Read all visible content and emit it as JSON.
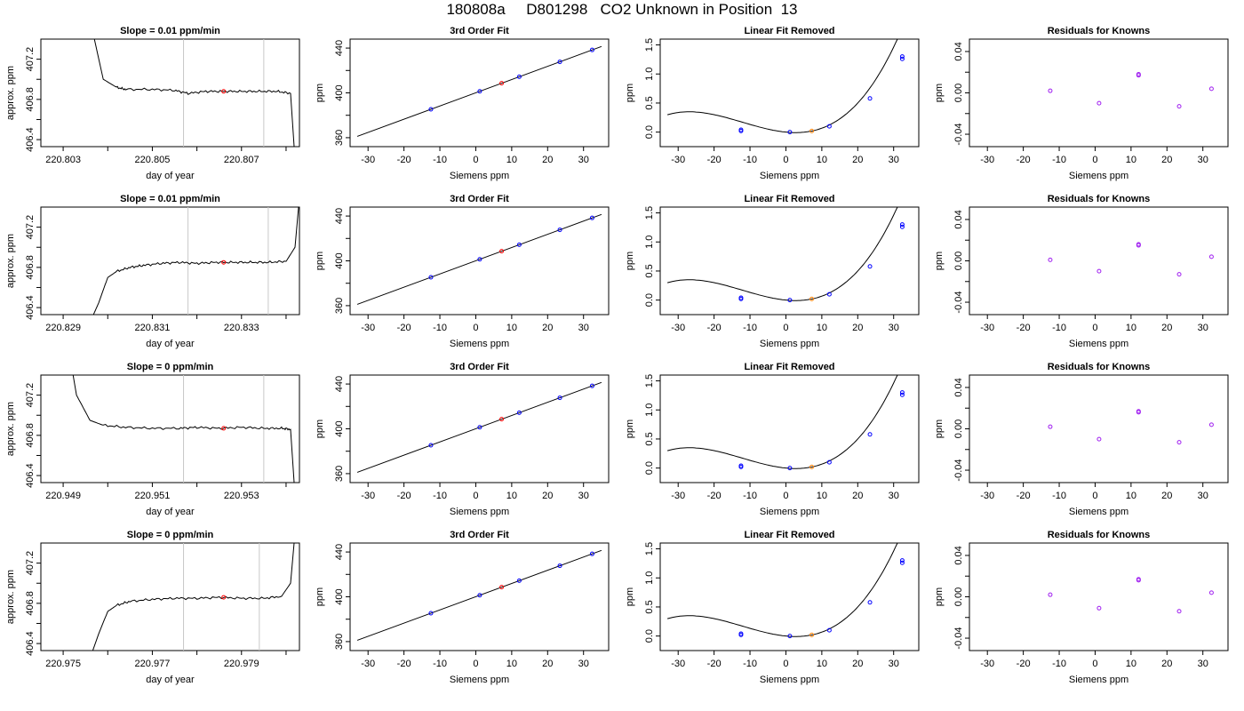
{
  "title": "180808a     D801298   CO2 Unknown in Position  13",
  "colors": {
    "axis": "#000000",
    "curve": "#000000",
    "known_point": "#0000ff",
    "unknown_point": "#ff0000",
    "unknown_point_residual": "#ff8000",
    "residual_point": "#a020f0",
    "vline": "#c8c8c8"
  },
  "chart_data": [
    {
      "type": "line",
      "row": 1,
      "title": "Slope =  0.01  ppm/min",
      "xlabel": "day of year",
      "ylabel": "approx. ppm",
      "xlim": [
        220.8025,
        220.8083
      ],
      "ylim": [
        406.33,
        407.4
      ],
      "x_ticks": [
        220.803,
        220.804,
        220.805,
        220.806,
        220.807,
        220.808
      ],
      "x_tick_labels": [
        "220.803",
        "",
        "220.805",
        "",
        "220.807",
        ""
      ],
      "y_ticks": [
        406.4,
        406.6,
        406.8,
        407.0,
        407.2
      ],
      "y_tick_labels": [
        "406.4",
        "",
        "406.8",
        "",
        "407.2"
      ],
      "vlines": [
        220.8057,
        220.8075
      ],
      "series_points": [
        [
          220.8026,
          409.5
        ],
        [
          220.8037,
          407.4
        ],
        [
          220.8039,
          407.0
        ],
        [
          220.8042,
          406.92
        ],
        [
          220.8044,
          406.9
        ],
        [
          220.805,
          406.9
        ],
        [
          220.8055,
          406.89
        ],
        [
          220.8058,
          406.86
        ],
        [
          220.8062,
          406.88
        ],
        [
          220.8066,
          406.88
        ],
        [
          220.807,
          406.88
        ],
        [
          220.8074,
          406.88
        ],
        [
          220.8078,
          406.88
        ],
        [
          220.8081,
          406.86
        ],
        [
          220.8082,
          406.2
        ]
      ],
      "marker": {
        "x": 220.8066,
        "y": 406.88
      }
    },
    {
      "type": "scatter",
      "row": 1,
      "title": "3rd Order Fit",
      "xlabel": "Siemens ppm",
      "ylabel": "ppm",
      "xlim": [
        -35,
        37
      ],
      "ylim": [
        352,
        448
      ],
      "x_ticks": [
        -30,
        -20,
        -10,
        0,
        10,
        20,
        30
      ],
      "y_ticks": [
        360,
        380,
        400,
        420,
        440
      ],
      "y_tick_labels": [
        "360",
        "",
        "400",
        "",
        "440"
      ],
      "line": {
        "x0": -33,
        "x1": 35
      },
      "known_x": [
        -12.5,
        1.1,
        12.1,
        23.4,
        32.4
      ],
      "unknown_x": 7.2
    },
    {
      "type": "scatter",
      "row": 1,
      "title": "Linear Fit Removed",
      "xlabel": "Siemens ppm",
      "ylabel": "ppm",
      "xlim": [
        -35,
        37
      ],
      "ylim": [
        -0.25,
        1.6
      ],
      "x_ticks": [
        -30,
        -20,
        -10,
        0,
        10,
        20,
        30
      ],
      "y_ticks": [
        0,
        0.5,
        1,
        1.5
      ],
      "y_tick_labels": [
        "0.0",
        "0.5",
        "1.0",
        "1.5"
      ],
      "curve_x": [
        -33,
        35
      ],
      "known_points": [
        [
          -12.5,
          0.02
        ],
        [
          -12.5,
          0.04
        ],
        [
          1.1,
          0.0
        ],
        [
          12.1,
          0.1
        ],
        [
          23.4,
          0.58
        ],
        [
          32.4,
          1.26
        ],
        [
          32.4,
          1.3
        ]
      ],
      "unknown_point": [
        7.2,
        0.02
      ]
    },
    {
      "type": "scatter",
      "row": 1,
      "title": "Residuals for Knowns",
      "xlabel": "Siemens ppm",
      "ylabel": "ppm",
      "xlim": [
        -35,
        37
      ],
      "ylim": [
        -0.052,
        0.052
      ],
      "x_ticks": [
        -30,
        -20,
        -10,
        0,
        10,
        20,
        30
      ],
      "y_ticks": [
        -0.04,
        -0.02,
        0,
        0.02,
        0.04
      ],
      "y_tick_labels": [
        "-0.04",
        "",
        "0.00",
        "",
        "0.04"
      ],
      "points": [
        [
          -12.5,
          0.002
        ],
        [
          1.1,
          -0.01
        ],
        [
          12.1,
          0.017
        ],
        [
          12.1,
          0.018
        ],
        [
          23.4,
          -0.013
        ],
        [
          32.4,
          0.004
        ]
      ]
    },
    {
      "type": "line",
      "row": 2,
      "title": "Slope =  0.01  ppm/min",
      "xlabel": "day of year",
      "ylabel": "approx. ppm",
      "xlim": [
        220.8285,
        220.8343
      ],
      "ylim": [
        406.33,
        407.4
      ],
      "x_ticks": [
        220.829,
        220.83,
        220.831,
        220.832,
        220.833,
        220.834
      ],
      "x_tick_labels": [
        "220.829",
        "",
        "220.831",
        "",
        "220.833",
        ""
      ],
      "y_ticks": [
        406.4,
        406.6,
        406.8,
        407.0,
        407.2
      ],
      "y_tick_labels": [
        "406.4",
        "",
        "406.8",
        "",
        "407.2"
      ],
      "vlines": [
        220.8318,
        220.8336
      ],
      "series_points": [
        [
          220.8296,
          406.25
        ],
        [
          220.8298,
          406.45
        ],
        [
          220.83,
          406.7
        ],
        [
          220.8302,
          406.76
        ],
        [
          220.8305,
          406.8
        ],
        [
          220.8308,
          406.82
        ],
        [
          220.8312,
          406.84
        ],
        [
          220.8316,
          406.85
        ],
        [
          220.832,
          406.84
        ],
        [
          220.8324,
          406.85
        ],
        [
          220.8328,
          406.85
        ],
        [
          220.8332,
          406.85
        ],
        [
          220.8336,
          406.85
        ],
        [
          220.834,
          406.86
        ],
        [
          220.8342,
          407.0
        ],
        [
          220.8343,
          407.5
        ]
      ],
      "marker": {
        "x": 220.8326,
        "y": 406.85
      }
    },
    {
      "type": "scatter",
      "row": 2,
      "title": "3rd Order Fit",
      "xlabel": "Siemens ppm",
      "ylabel": "ppm",
      "xlim": [
        -35,
        37
      ],
      "ylim": [
        352,
        448
      ],
      "x_ticks": [
        -30,
        -20,
        -10,
        0,
        10,
        20,
        30
      ],
      "y_ticks": [
        360,
        380,
        400,
        420,
        440
      ],
      "y_tick_labels": [
        "360",
        "",
        "400",
        "",
        "440"
      ],
      "line": {
        "x0": -33,
        "x1": 35
      },
      "known_x": [
        -12.5,
        1.1,
        12.1,
        23.4,
        32.4
      ],
      "unknown_x": 7.2
    },
    {
      "type": "scatter",
      "row": 2,
      "title": "Linear Fit Removed",
      "xlabel": "Siemens ppm",
      "ylabel": "ppm",
      "xlim": [
        -35,
        37
      ],
      "ylim": [
        -0.25,
        1.6
      ],
      "x_ticks": [
        -30,
        -20,
        -10,
        0,
        10,
        20,
        30
      ],
      "y_ticks": [
        0,
        0.5,
        1,
        1.5
      ],
      "y_tick_labels": [
        "0.0",
        "0.5",
        "1.0",
        "1.5"
      ],
      "curve_x": [
        -33,
        35
      ],
      "known_points": [
        [
          -12.5,
          0.02
        ],
        [
          -12.5,
          0.04
        ],
        [
          1.1,
          0.0
        ],
        [
          12.1,
          0.1
        ],
        [
          23.4,
          0.58
        ],
        [
          32.4,
          1.26
        ],
        [
          32.4,
          1.3
        ]
      ],
      "unknown_point": [
        7.2,
        0.02
      ]
    },
    {
      "type": "scatter",
      "row": 2,
      "title": "Residuals for Knowns",
      "xlabel": "Siemens ppm",
      "ylabel": "ppm",
      "xlim": [
        -35,
        37
      ],
      "ylim": [
        -0.052,
        0.052
      ],
      "x_ticks": [
        -30,
        -20,
        -10,
        0,
        10,
        20,
        30
      ],
      "y_ticks": [
        -0.04,
        -0.02,
        0,
        0.02,
        0.04
      ],
      "y_tick_labels": [
        "-0.04",
        "",
        "0.00",
        "",
        "0.04"
      ],
      "points": [
        [
          -12.5,
          0.001
        ],
        [
          1.1,
          -0.01
        ],
        [
          12.1,
          0.015
        ],
        [
          12.1,
          0.016
        ],
        [
          23.4,
          -0.013
        ],
        [
          32.4,
          0.004
        ]
      ]
    },
    {
      "type": "line",
      "row": 3,
      "title": "Slope =  0  ppm/min",
      "xlabel": "day of year",
      "ylabel": "approx. ppm",
      "xlim": [
        220.9485,
        220.9543
      ],
      "ylim": [
        406.33,
        407.4
      ],
      "x_ticks": [
        220.949,
        220.95,
        220.951,
        220.952,
        220.953,
        220.954
      ],
      "x_tick_labels": [
        "220.949",
        "",
        "220.951",
        "",
        "220.953",
        ""
      ],
      "y_ticks": [
        406.4,
        406.6,
        406.8,
        407.0,
        407.2
      ],
      "y_tick_labels": [
        "406.4",
        "",
        "406.8",
        "",
        "407.2"
      ],
      "vlines": [
        220.9517,
        220.9535
      ],
      "series_points": [
        [
          220.9488,
          408.5
        ],
        [
          220.9493,
          407.2
        ],
        [
          220.9496,
          406.95
        ],
        [
          220.9499,
          406.9
        ],
        [
          220.9504,
          406.88
        ],
        [
          220.951,
          406.87
        ],
        [
          220.9516,
          406.87
        ],
        [
          220.952,
          406.88
        ],
        [
          220.9525,
          406.87
        ],
        [
          220.953,
          406.88
        ],
        [
          220.9535,
          406.87
        ],
        [
          220.9539,
          406.87
        ],
        [
          220.9541,
          406.86
        ],
        [
          220.9542,
          406.2
        ]
      ],
      "marker": {
        "x": 220.9526,
        "y": 406.87
      }
    },
    {
      "type": "scatter",
      "row": 3,
      "title": "3rd Order Fit",
      "xlabel": "Siemens ppm",
      "ylabel": "ppm",
      "xlim": [
        -35,
        37
      ],
      "ylim": [
        352,
        448
      ],
      "x_ticks": [
        -30,
        -20,
        -10,
        0,
        10,
        20,
        30
      ],
      "y_ticks": [
        360,
        380,
        400,
        420,
        440
      ],
      "y_tick_labels": [
        "360",
        "",
        "400",
        "",
        "440"
      ],
      "line": {
        "x0": -33,
        "x1": 35
      },
      "known_x": [
        -12.5,
        1.1,
        12.1,
        23.4,
        32.4
      ],
      "unknown_x": 7.2
    },
    {
      "type": "scatter",
      "row": 3,
      "title": "Linear Fit Removed",
      "xlabel": "Siemens ppm",
      "ylabel": "ppm",
      "xlim": [
        -35,
        37
      ],
      "ylim": [
        -0.25,
        1.6
      ],
      "x_ticks": [
        -30,
        -20,
        -10,
        0,
        10,
        20,
        30
      ],
      "y_ticks": [
        0,
        0.5,
        1,
        1.5
      ],
      "y_tick_labels": [
        "0.0",
        "0.5",
        "1.0",
        "1.5"
      ],
      "curve_x": [
        -33,
        35
      ],
      "known_points": [
        [
          -12.5,
          0.02
        ],
        [
          -12.5,
          0.04
        ],
        [
          1.1,
          0.0
        ],
        [
          12.1,
          0.1
        ],
        [
          23.4,
          0.58
        ],
        [
          32.4,
          1.26
        ],
        [
          32.4,
          1.3
        ]
      ],
      "unknown_point": [
        7.2,
        0.02
      ]
    },
    {
      "type": "scatter",
      "row": 3,
      "title": "Residuals for Knowns",
      "xlabel": "Siemens ppm",
      "ylabel": "ppm",
      "xlim": [
        -35,
        37
      ],
      "ylim": [
        -0.052,
        0.052
      ],
      "x_ticks": [
        -30,
        -20,
        -10,
        0,
        10,
        20,
        30
      ],
      "y_ticks": [
        -0.04,
        -0.02,
        0,
        0.02,
        0.04
      ],
      "y_tick_labels": [
        "-0.04",
        "",
        "0.00",
        "",
        "0.04"
      ],
      "points": [
        [
          -12.5,
          0.002
        ],
        [
          1.1,
          -0.01
        ],
        [
          12.1,
          0.016
        ],
        [
          12.1,
          0.017
        ],
        [
          23.4,
          -0.013
        ],
        [
          32.4,
          0.004
        ]
      ]
    },
    {
      "type": "line",
      "row": 4,
      "title": "Slope =  0  ppm/min",
      "xlabel": "day of year",
      "ylabel": "approx. ppm",
      "xlim": [
        220.9745,
        220.9803
      ],
      "ylim": [
        406.33,
        407.4
      ],
      "x_ticks": [
        220.975,
        220.976,
        220.977,
        220.978,
        220.979,
        220.98
      ],
      "x_tick_labels": [
        "220.975",
        "",
        "220.977",
        "",
        "220.979",
        ""
      ],
      "y_ticks": [
        406.4,
        406.6,
        406.8,
        407.0,
        407.2
      ],
      "y_tick_labels": [
        "406.4",
        "",
        "406.8",
        "",
        "407.2"
      ],
      "vlines": [
        220.9777,
        220.9794
      ],
      "series_points": [
        [
          220.9756,
          406.25
        ],
        [
          220.9758,
          406.5
        ],
        [
          220.976,
          406.72
        ],
        [
          220.9762,
          406.78
        ],
        [
          220.9765,
          406.82
        ],
        [
          220.977,
          406.84
        ],
        [
          220.9775,
          406.85
        ],
        [
          220.978,
          406.85
        ],
        [
          220.9785,
          406.86
        ],
        [
          220.979,
          406.85
        ],
        [
          220.9795,
          406.85
        ],
        [
          220.9799,
          406.87
        ],
        [
          220.9801,
          407.0
        ],
        [
          220.9802,
          407.5
        ]
      ],
      "marker": {
        "x": 220.9786,
        "y": 406.86
      }
    },
    {
      "type": "scatter",
      "row": 4,
      "title": "3rd Order Fit",
      "xlabel": "Siemens ppm",
      "ylabel": "ppm",
      "xlim": [
        -35,
        37
      ],
      "ylim": [
        352,
        448
      ],
      "x_ticks": [
        -30,
        -20,
        -10,
        0,
        10,
        20,
        30
      ],
      "y_ticks": [
        360,
        380,
        400,
        420,
        440
      ],
      "y_tick_labels": [
        "360",
        "",
        "400",
        "",
        "440"
      ],
      "line": {
        "x0": -33,
        "x1": 35
      },
      "known_x": [
        -12.5,
        1.1,
        12.1,
        23.4,
        32.4
      ],
      "unknown_x": 7.2
    },
    {
      "type": "scatter",
      "row": 4,
      "title": "Linear Fit Removed",
      "xlabel": "Siemens ppm",
      "ylabel": "ppm",
      "xlim": [
        -35,
        37
      ],
      "ylim": [
        -0.25,
        1.6
      ],
      "x_ticks": [
        -30,
        -20,
        -10,
        0,
        10,
        20,
        30
      ],
      "y_ticks": [
        0,
        0.5,
        1,
        1.5
      ],
      "y_tick_labels": [
        "0.0",
        "0.5",
        "1.0",
        "1.5"
      ],
      "curve_x": [
        -33,
        35
      ],
      "known_points": [
        [
          -12.5,
          0.02
        ],
        [
          -12.5,
          0.04
        ],
        [
          1.1,
          0.0
        ],
        [
          12.1,
          0.1
        ],
        [
          23.4,
          0.58
        ],
        [
          32.4,
          1.26
        ],
        [
          32.4,
          1.3
        ]
      ],
      "unknown_point": [
        7.2,
        0.02
      ]
    },
    {
      "type": "scatter",
      "row": 4,
      "title": "Residuals for Knowns",
      "xlabel": "Siemens ppm",
      "ylabel": "ppm",
      "xlim": [
        -35,
        37
      ],
      "ylim": [
        -0.052,
        0.052
      ],
      "x_ticks": [
        -30,
        -20,
        -10,
        0,
        10,
        20,
        30
      ],
      "y_ticks": [
        -0.04,
        -0.02,
        0,
        0.02,
        0.04
      ],
      "y_tick_labels": [
        "-0.04",
        "",
        "0.00",
        "",
        "0.04"
      ],
      "points": [
        [
          -12.5,
          0.002
        ],
        [
          1.1,
          -0.011
        ],
        [
          12.1,
          0.016
        ],
        [
          12.1,
          0.017
        ],
        [
          23.4,
          -0.014
        ],
        [
          32.4,
          0.004
        ]
      ]
    }
  ]
}
